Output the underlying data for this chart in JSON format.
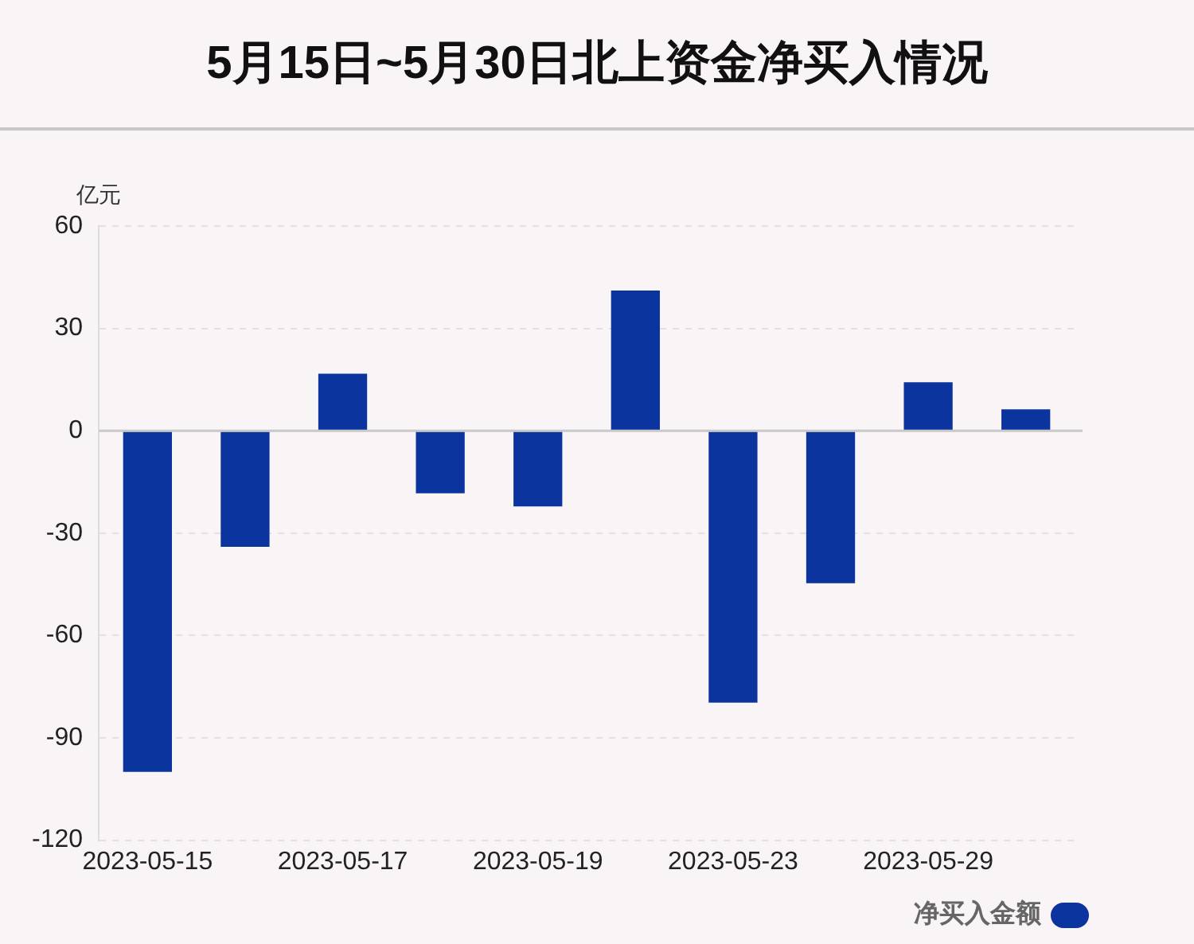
{
  "chart_data": {
    "type": "bar",
    "title": "5月15日~5月30日北上资金净买入情况",
    "ylabel": "亿元",
    "categories": [
      "2023-05-15",
      null,
      "2023-05-17",
      null,
      "2023-05-19",
      null,
      "2023-05-23",
      null,
      "2023-05-29",
      null
    ],
    "series": [
      {
        "name": "净买入金额",
        "color": "#0c349e",
        "values": [
          -100,
          -34,
          16.7,
          -18.3,
          -22.2,
          41.1,
          -79.7,
          -44.7,
          14.2,
          6.3
        ]
      }
    ],
    "ylim": [
      -120,
      60
    ],
    "yticks": [
      -120,
      -90,
      -60,
      -30,
      0,
      30,
      60
    ],
    "grid": "y",
    "legend": "bottom right"
  }
}
